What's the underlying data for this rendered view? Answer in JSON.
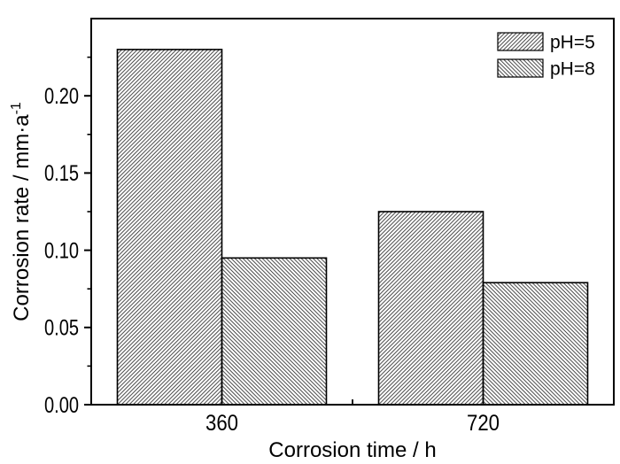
{
  "chart_data": {
    "type": "bar",
    "title": "",
    "categories": [
      "360",
      "720"
    ],
    "series": [
      {
        "name": "pH=5",
        "hatch": "forward-diagonal",
        "values": [
          0.23,
          0.125
        ]
      },
      {
        "name": "pH=8",
        "hatch": "backward-diagonal",
        "values": [
          0.095,
          0.079
        ]
      }
    ],
    "xlabel": "Corrosion time / h",
    "ylabel": "Corrosion rate / mm·a⁻¹",
    "ylabel_main": "Corrosion rate / mm·a",
    "ylabel_sup": "-1",
    "ylim": [
      0,
      0.25
    ],
    "yticks": [
      0,
      0.05,
      0.1,
      0.15,
      0.2
    ],
    "ytick_labels": [
      "0.00",
      "0.05",
      "0.10",
      "0.15",
      "0.20"
    ],
    "minor_ytick_step": 0.025,
    "grid": false,
    "legend_position": "top-right-inside",
    "colors": {
      "foreground": "#000000",
      "background": "#ffffff",
      "bar_fill": "#ffffff"
    }
  }
}
